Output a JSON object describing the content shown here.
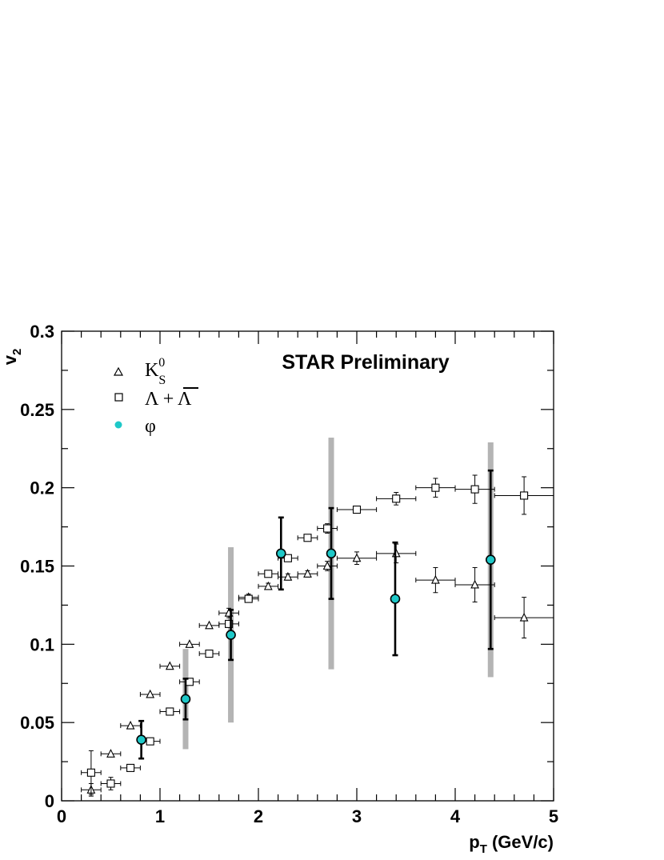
{
  "chart_data": {
    "type": "scatter",
    "title": "",
    "annotation": "STAR Preliminary",
    "xlabel": "p",
    "xlabel_sub": "T",
    "xlabel_unit": " (GeV/c)",
    "ylabel": "v",
    "ylabel_sub": "2",
    "xlim": [
      0,
      5
    ],
    "ylim": [
      0,
      0.3
    ],
    "xticks": [
      0,
      1,
      2,
      3,
      4,
      5
    ],
    "xtick_labels": [
      "0",
      "1",
      "2",
      "3",
      "4",
      "5"
    ],
    "yticks": [
      0,
      0.05,
      0.1,
      0.15,
      0.2,
      0.25,
      0.3
    ],
    "ytick_labels": [
      "0",
      "0.05",
      "0.1",
      "0.15",
      "0.2",
      "0.25",
      "0.3"
    ],
    "grid": false,
    "legend_position": "top-left",
    "series": [
      {
        "legend_main": "K",
        "legend_sub": "S",
        "legend_sup": "0",
        "marker": "open-triangle",
        "color": "#000000",
        "points": [
          {
            "x": 0.3,
            "y": 0.007,
            "xerr": 0.1,
            "yerr": 0.004
          },
          {
            "x": 0.5,
            "y": 0.03,
            "xerr": 0.1,
            "yerr": 0.0
          },
          {
            "x": 0.7,
            "y": 0.048,
            "xerr": 0.1,
            "yerr": 0.0
          },
          {
            "x": 0.9,
            "y": 0.068,
            "xerr": 0.1,
            "yerr": 0.0
          },
          {
            "x": 1.1,
            "y": 0.086,
            "xerr": 0.1,
            "yerr": 0.0
          },
          {
            "x": 1.3,
            "y": 0.1,
            "xerr": 0.1,
            "yerr": 0.0
          },
          {
            "x": 1.5,
            "y": 0.112,
            "xerr": 0.1,
            "yerr": 0.0
          },
          {
            "x": 1.7,
            "y": 0.12,
            "xerr": 0.1,
            "yerr": 0.003
          },
          {
            "x": 1.9,
            "y": 0.13,
            "xerr": 0.1,
            "yerr": 0.002
          },
          {
            "x": 2.1,
            "y": 0.137,
            "xerr": 0.1,
            "yerr": 0.002
          },
          {
            "x": 2.3,
            "y": 0.143,
            "xerr": 0.1,
            "yerr": 0.002
          },
          {
            "x": 2.5,
            "y": 0.145,
            "xerr": 0.1,
            "yerr": 0.002
          },
          {
            "x": 2.7,
            "y": 0.15,
            "xerr": 0.1,
            "yerr": 0.003
          },
          {
            "x": 3.0,
            "y": 0.155,
            "xerr": 0.2,
            "yerr": 0.004
          },
          {
            "x": 3.4,
            "y": 0.158,
            "xerr": 0.2,
            "yerr": 0.006
          },
          {
            "x": 3.8,
            "y": 0.141,
            "xerr": 0.2,
            "yerr": 0.008
          },
          {
            "x": 4.2,
            "y": 0.138,
            "xerr": 0.2,
            "yerr": 0.011
          },
          {
            "x": 4.7,
            "y": 0.117,
            "xerr": 0.3,
            "yerr": 0.013
          }
        ]
      },
      {
        "legend_main": "Λ + ",
        "legend_bar": "Λ",
        "marker": "open-square",
        "color": "#000000",
        "points": [
          {
            "x": 0.3,
            "y": 0.018,
            "xerr": 0.1,
            "yerr": 0.014
          },
          {
            "x": 0.5,
            "y": 0.011,
            "xerr": 0.1,
            "yerr": 0.004
          },
          {
            "x": 0.7,
            "y": 0.021,
            "xerr": 0.1,
            "yerr": 0.0
          },
          {
            "x": 0.9,
            "y": 0.038,
            "xerr": 0.1,
            "yerr": 0.0
          },
          {
            "x": 1.1,
            "y": 0.057,
            "xerr": 0.1,
            "yerr": 0.0
          },
          {
            "x": 1.3,
            "y": 0.076,
            "xerr": 0.1,
            "yerr": 0.0
          },
          {
            "x": 1.5,
            "y": 0.094,
            "xerr": 0.1,
            "yerr": 0.0
          },
          {
            "x": 1.7,
            "y": 0.113,
            "xerr": 0.1,
            "yerr": 0.0
          },
          {
            "x": 1.9,
            "y": 0.129,
            "xerr": 0.1,
            "yerr": 0.0
          },
          {
            "x": 2.1,
            "y": 0.145,
            "xerr": 0.1,
            "yerr": 0.0
          },
          {
            "x": 2.3,
            "y": 0.155,
            "xerr": 0.1,
            "yerr": 0.0
          },
          {
            "x": 2.5,
            "y": 0.168,
            "xerr": 0.1,
            "yerr": 0.0
          },
          {
            "x": 2.7,
            "y": 0.174,
            "xerr": 0.1,
            "yerr": 0.003
          },
          {
            "x": 3.0,
            "y": 0.186,
            "xerr": 0.2,
            "yerr": 0.0
          },
          {
            "x": 3.4,
            "y": 0.193,
            "xerr": 0.2,
            "yerr": 0.004
          },
          {
            "x": 3.8,
            "y": 0.2,
            "xerr": 0.2,
            "yerr": 0.006
          },
          {
            "x": 4.2,
            "y": 0.199,
            "xerr": 0.2,
            "yerr": 0.009
          },
          {
            "x": 4.7,
            "y": 0.195,
            "xerr": 0.3,
            "yerr": 0.012
          }
        ]
      },
      {
        "legend_main": "φ",
        "marker": "filled-circle",
        "color": "#1ec8c8",
        "points": [
          {
            "x": 0.81,
            "y": 0.039,
            "yerr": 0.012,
            "syst": 0.0
          },
          {
            "x": 1.26,
            "y": 0.065,
            "yerr": 0.013,
            "syst": 0.032
          },
          {
            "x": 1.72,
            "y": 0.106,
            "yerr": 0.016,
            "syst": 0.056
          },
          {
            "x": 2.23,
            "y": 0.158,
            "yerr": 0.023,
            "syst": 0.0
          },
          {
            "x": 2.74,
            "y": 0.158,
            "yerr": 0.029,
            "syst": 0.074
          },
          {
            "x": 3.39,
            "y": 0.129,
            "yerr": 0.036,
            "syst": 0.0
          },
          {
            "x": 4.36,
            "y": 0.154,
            "yerr": 0.057,
            "syst": 0.075
          }
        ]
      }
    ]
  }
}
